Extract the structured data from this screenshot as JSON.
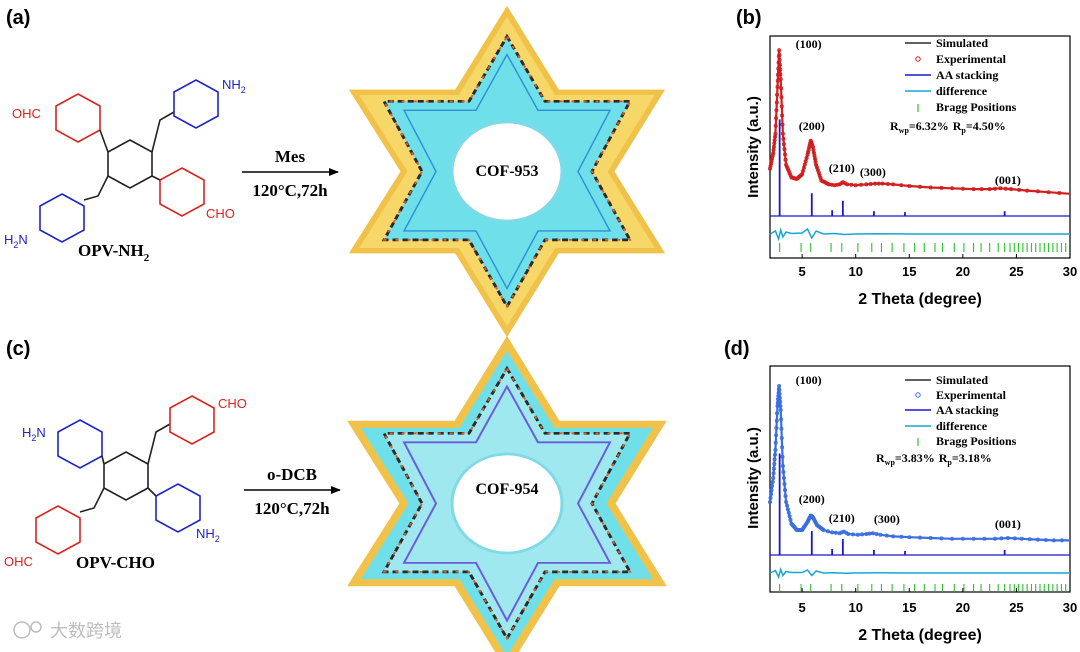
{
  "panels": {
    "a": {
      "label": "(a)",
      "monomer": "OPV-NH",
      "monomer_sub": "2",
      "groups": {
        "top_left": "OHC",
        "top_right": "NH",
        "top_right_sub": "2",
        "bottom_left": "H",
        "bottom_left_sub": "2",
        "bottom_left_tail": "N",
        "bottom_right": "CHO"
      },
      "condition_top": "Mes",
      "condition_bottom": "120°C,72h",
      "product": "COF-953"
    },
    "c": {
      "label": "(c)",
      "monomer": "OPV-CHO",
      "groups": {
        "top_left": "H",
        "top_left_sub": "2",
        "top_left_tail": "N",
        "top_right": "CHO",
        "bottom_left": "OHC",
        "bottom_right": "NH",
        "bottom_right_sub": "2"
      },
      "condition_top": "o-DCB",
      "condition_bottom": "120°C,72h",
      "product": "COF-954"
    }
  },
  "watermark": "大数跨境",
  "colors": {
    "aldehyde": "#d8241f",
    "amine": "#1f24c8",
    "simulated": "#000000",
    "experimental_b": "#d01f1f",
    "experimental_d": "#3a6fe0",
    "aa_stacking": "#1818d0",
    "difference": "#16a6d8",
    "bragg": "#2bc12b",
    "framework_yellow": "#f6d768",
    "framework_cyan": "#6fe0ea"
  },
  "chart_data": [
    {
      "panel_label": "(b)",
      "type": "line",
      "xlabel": "2 Theta (degree)",
      "ylabel": "Intensity (a.u.)",
      "xlim": [
        2,
        30
      ],
      "xticks": [
        5,
        10,
        15,
        20,
        25,
        30
      ],
      "legend": [
        "Simulated",
        "Experimental",
        "AA stacking",
        "difference",
        "Bragg Positions"
      ],
      "stats": {
        "rwp_label": "R",
        "rwp_sub": "wp",
        "rwp_value": "=6.32%",
        "rp_label": "R",
        "rp_sub": "p",
        "rp_value": "=4.50%"
      },
      "peak_labels": [
        {
          "text": "(100)",
          "x": 2.9
        },
        {
          "text": "(200)",
          "x": 5.9
        },
        {
          "text": "(210)",
          "x": 8.7
        },
        {
          "text": "(300)",
          "x": 11.6
        },
        {
          "text": "(001)",
          "x": 24.2
        }
      ],
      "experimental": {
        "x": [
          2.0,
          2.3,
          2.5,
          2.7,
          2.85,
          3.0,
          3.2,
          3.5,
          4.0,
          4.5,
          5.0,
          5.5,
          5.8,
          6.0,
          6.3,
          6.8,
          7.5,
          8.0,
          8.5,
          8.8,
          9.2,
          10.0,
          11.0,
          11.8,
          12.5,
          13.5,
          15.0,
          17.0,
          19.0,
          21.0,
          22.5,
          23.5,
          24.5,
          26.0,
          28.0,
          30.0
        ],
        "y": [
          0.4,
          0.6,
          0.85,
          1.45,
          1.92,
          1.55,
          0.85,
          0.45,
          0.29,
          0.27,
          0.33,
          0.58,
          0.76,
          0.68,
          0.45,
          0.25,
          0.2,
          0.19,
          0.2,
          0.23,
          0.2,
          0.19,
          0.2,
          0.21,
          0.21,
          0.2,
          0.18,
          0.16,
          0.15,
          0.14,
          0.14,
          0.15,
          0.14,
          0.12,
          0.1,
          0.08
        ]
      },
      "aa_stacking_peaks": [
        {
          "x": 2.9,
          "h": 1.0
        },
        {
          "x": 5.9,
          "h": 0.22
        },
        {
          "x": 7.8,
          "h": 0.04
        },
        {
          "x": 8.8,
          "h": 0.14
        },
        {
          "x": 11.7,
          "h": 0.03
        },
        {
          "x": 14.6,
          "h": 0.02
        },
        {
          "x": 23.9,
          "h": 0.03
        }
      ],
      "difference": {
        "x": [
          2,
          2.5,
          2.8,
          3.0,
          3.2,
          3.5,
          4,
          5,
          5.5,
          5.9,
          6.3,
          7,
          8,
          9,
          10,
          12,
          15,
          20,
          25,
          30
        ],
        "y": [
          0,
          0.3,
          -0.5,
          0.4,
          -0.3,
          0.2,
          0.05,
          0.1,
          0.5,
          -0.4,
          0.3,
          0,
          0.05,
          -0.05,
          0,
          0.03,
          0,
          0,
          0,
          0
        ]
      },
      "bragg_positions": [
        2.9,
        4.9,
        5.8,
        7.7,
        8.7,
        10.2,
        11.5,
        12.4,
        13.4,
        14.5,
        15.5,
        16.4,
        17.4,
        18.1,
        19.2,
        20.1,
        21.0,
        21.7,
        22.5,
        23.3,
        23.9,
        24.4,
        24.8,
        25.2,
        25.6,
        26.0,
        26.4,
        26.8,
        27.2,
        27.6,
        28.0,
        28.4,
        28.8,
        29.2,
        29.6
      ]
    },
    {
      "panel_label": "(d)",
      "type": "line",
      "xlabel": "2 Theta (degree)",
      "ylabel": "Intensity (a.u.)",
      "xlim": [
        2,
        30
      ],
      "xticks": [
        5,
        10,
        15,
        20,
        25,
        30
      ],
      "legend": [
        "Simulated",
        "Experimental",
        "AA stacking",
        "difference",
        "Bragg Positions"
      ],
      "stats": {
        "rwp_label": "R",
        "rwp_sub": "wp",
        "rwp_value": "=3.83%",
        "rp_label": "R",
        "rp_sub": "p",
        "rp_value": "=3.18%"
      },
      "peak_labels": [
        {
          "text": "(100)",
          "x": 2.9
        },
        {
          "text": "(200)",
          "x": 5.9
        },
        {
          "text": "(210)",
          "x": 8.7
        },
        {
          "text": "(300)",
          "x": 11.6
        },
        {
          "text": "(001)",
          "x": 24.2
        }
      ],
      "experimental": {
        "x": [
          2.0,
          2.3,
          2.5,
          2.7,
          2.85,
          3.0,
          3.2,
          3.5,
          4.0,
          4.5,
          5.0,
          5.5,
          5.8,
          6.0,
          6.4,
          7.0,
          7.8,
          8.5,
          8.9,
          9.3,
          10.2,
          11.0,
          11.6,
          12.3,
          13.5,
          15.0,
          17.0,
          19.0,
          21.0,
          23.0,
          24.2,
          25.5,
          27.0,
          28.5,
          30.0
        ],
        "y": [
          0.55,
          0.85,
          1.2,
          1.75,
          2.0,
          1.7,
          1.0,
          0.55,
          0.28,
          0.2,
          0.2,
          0.3,
          0.38,
          0.36,
          0.26,
          0.2,
          0.17,
          0.16,
          0.18,
          0.15,
          0.14,
          0.15,
          0.16,
          0.14,
          0.12,
          0.11,
          0.1,
          0.09,
          0.09,
          0.09,
          0.1,
          0.09,
          0.08,
          0.07,
          0.07
        ]
      },
      "aa_stacking_peaks": [
        {
          "x": 2.9,
          "h": 1.0
        },
        {
          "x": 5.9,
          "h": 0.22
        },
        {
          "x": 7.8,
          "h": 0.04
        },
        {
          "x": 8.8,
          "h": 0.14
        },
        {
          "x": 11.7,
          "h": 0.03
        },
        {
          "x": 14.6,
          "h": 0.02
        },
        {
          "x": 23.9,
          "h": 0.03
        }
      ],
      "difference": {
        "x": [
          2,
          2.5,
          2.8,
          3.0,
          3.2,
          3.5,
          4,
          5,
          5.5,
          5.9,
          6.3,
          7,
          8,
          9,
          10,
          12,
          15,
          20,
          25,
          30
        ],
        "y": [
          0,
          0.25,
          -0.4,
          0.35,
          -0.25,
          0.15,
          0.05,
          0.05,
          0.3,
          -0.25,
          0.2,
          0,
          0.03,
          -0.03,
          0,
          0.02,
          0,
          0,
          0,
          0
        ]
      },
      "bragg_positions": [
        2.9,
        4.9,
        5.8,
        7.7,
        8.7,
        10.2,
        11.5,
        12.4,
        13.4,
        14.5,
        15.5,
        16.4,
        17.4,
        18.1,
        19.2,
        20.1,
        21.0,
        21.7,
        22.5,
        23.3,
        23.9,
        24.4,
        24.8,
        25.2,
        25.6,
        26.0,
        26.4,
        26.8,
        27.2,
        27.6,
        28.0,
        28.4,
        28.8,
        29.2,
        29.6
      ]
    }
  ]
}
